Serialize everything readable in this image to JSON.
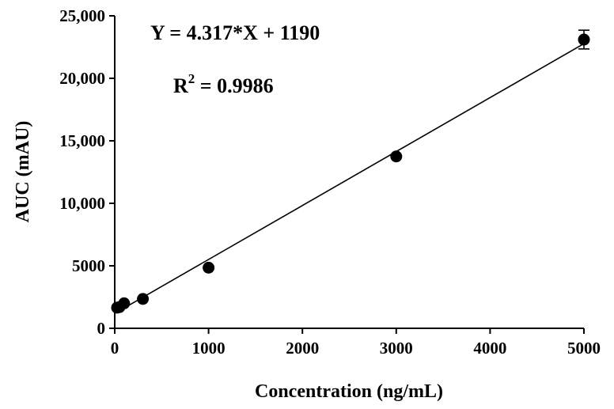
{
  "chart_data": {
    "type": "scatter",
    "xlabel": "Concentration (ng/mL)",
    "ylabel": "AUC (mAU)",
    "xlim": [
      0,
      5000
    ],
    "ylim": [
      0,
      25000
    ],
    "x_ticks": [
      0,
      1000,
      2000,
      3000,
      4000,
      5000
    ],
    "x_tick_labels": [
      "0",
      "1000",
      "2000",
      "3000",
      "4000",
      "5000"
    ],
    "y_ticks": [
      0,
      5000,
      10000,
      15000,
      20000,
      25000
    ],
    "y_tick_labels": [
      "0",
      "5000",
      "10,000",
      "15,000",
      "20,000",
      "25,000"
    ],
    "points": [
      {
        "x": 25,
        "y": 1650,
        "err": 0
      },
      {
        "x": 50,
        "y": 1700,
        "err": 0
      },
      {
        "x": 100,
        "y": 2000,
        "err": 0
      },
      {
        "x": 300,
        "y": 2350,
        "err": 0
      },
      {
        "x": 1000,
        "y": 4850,
        "err": 0
      },
      {
        "x": 3000,
        "y": 13750,
        "err": 0
      },
      {
        "x": 5000,
        "y": 23100,
        "err": 750
      }
    ],
    "fit": {
      "slope": 4.317,
      "intercept": 1190
    },
    "equation": "Y = 4.317*X + 1190",
    "r2_prefix": "R",
    "r2_exponent": "2",
    "r2_value": " = 0.9986",
    "grid": false,
    "legend": "none",
    "marker_color": "#000000",
    "line_color": "#000000"
  }
}
